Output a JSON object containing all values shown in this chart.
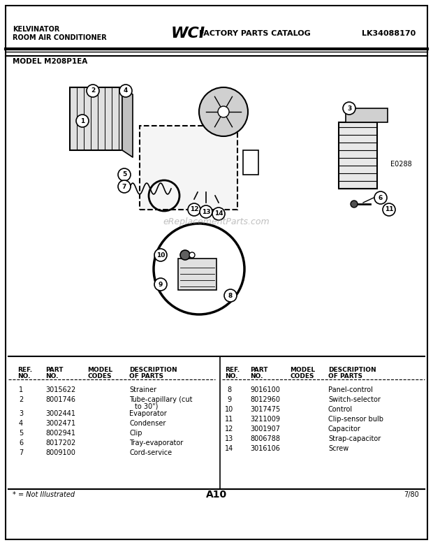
{
  "bg_color": "#ffffff",
  "border_color": "#000000",
  "title_left": "KELVINATOR\nROOM AIR CONDITIONER",
  "title_center": "WCI FACTORY PARTS CATALOG",
  "title_right": "LK34088170",
  "model": "MODEL M208P1EA",
  "diagram_code": "E0288",
  "page": "A10",
  "date": "7/80",
  "footnote": "* = Not Illustrated",
  "table_headers": [
    "REF.\nNO.",
    "PART\nNO.",
    "MODEL\nCODES",
    "DESCRIPTION\nOF PARTS"
  ],
  "parts_left": [
    [
      "1",
      "3015622",
      "",
      "Strainer"
    ],
    [
      "2",
      "8001746",
      "",
      "Tube-capillary (cut\n  to 30\")"
    ],
    [
      "3",
      "3002441",
      "",
      "Evaporator"
    ],
    [
      "4",
      "3002471",
      "",
      "Condenser"
    ],
    [
      "5",
      "8002941",
      "",
      "Clip"
    ],
    [
      "6",
      "8017202",
      "",
      "Tray-evaporator"
    ],
    [
      "7",
      "8009100",
      "",
      "Cord-service"
    ]
  ],
  "parts_right": [
    [
      "8",
      "9016100",
      "",
      "Panel-control"
    ],
    [
      "9",
      "8012960",
      "",
      "Switch-selector"
    ],
    [
      "10",
      "3017475",
      "",
      "Control"
    ],
    [
      "11",
      "3211009",
      "",
      "Clip-sensor bulb"
    ],
    [
      "12",
      "3001907",
      "",
      "Capacitor"
    ],
    [
      "13",
      "8006788",
      "",
      "Strap-capacitor"
    ],
    [
      "14",
      "3016106",
      "",
      "Screw"
    ]
  ],
  "watermark": "eReplacementParts.com"
}
